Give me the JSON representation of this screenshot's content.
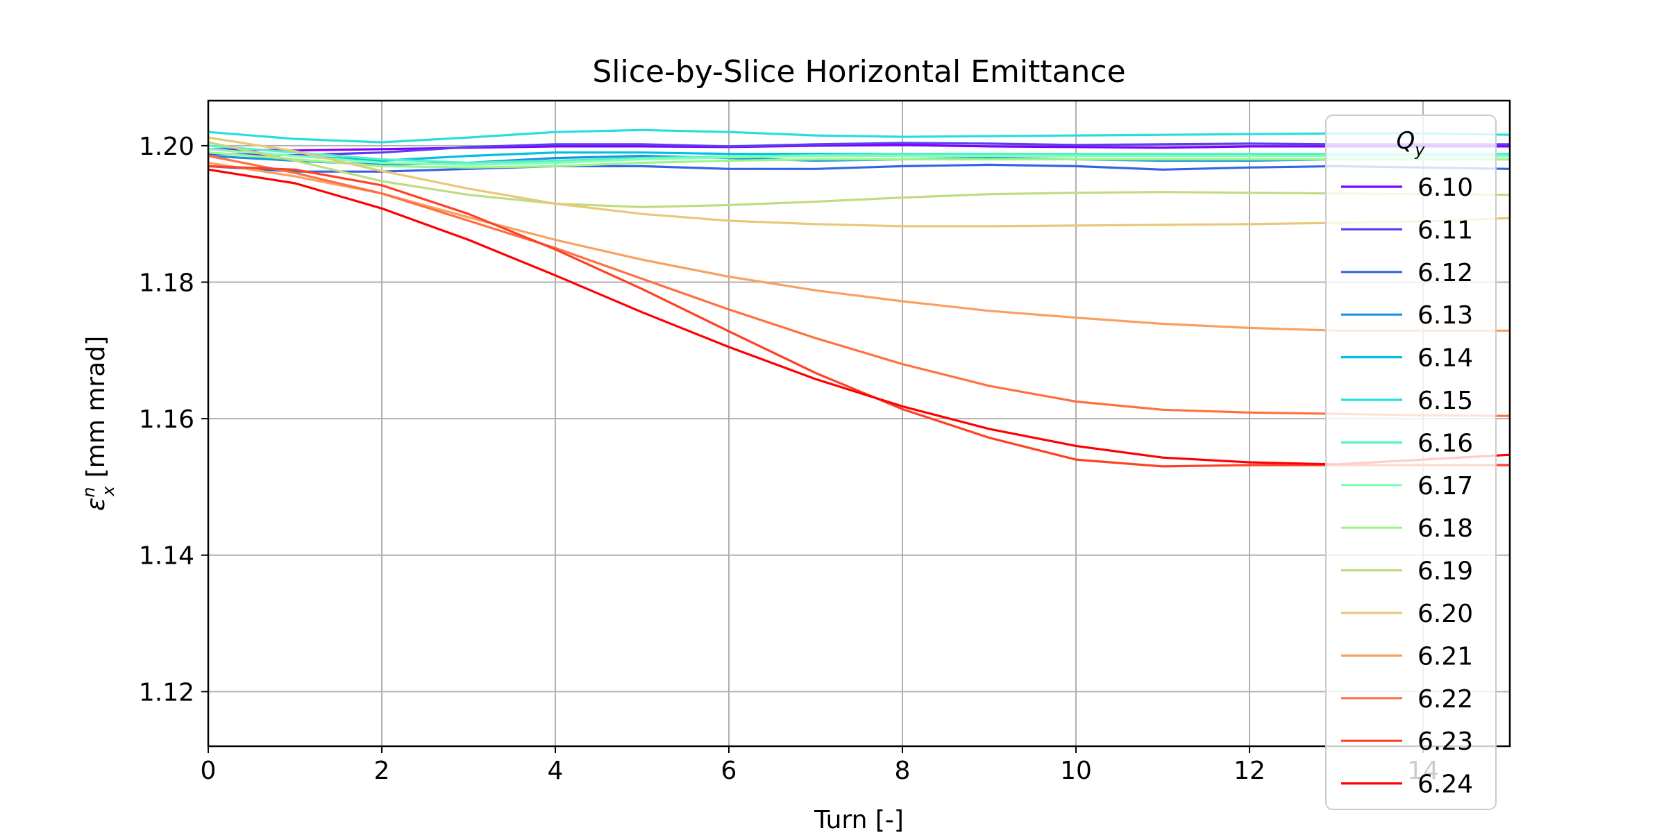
{
  "chart_data": {
    "type": "line",
    "title": "Slice-by-Slice Horizontal Emittance",
    "xlabel": "Turn [-]",
    "ylabel_main": "ε",
    "ylabel_sup": "n",
    "ylabel_sub": "x",
    "ylabel_units": "[mm mrad]",
    "xlim": [
      0,
      15
    ],
    "ylim": [
      1.112,
      1.2066
    ],
    "xticks": [
      0,
      2,
      4,
      6,
      8,
      10,
      12,
      14
    ],
    "yticks": [
      1.12,
      1.14,
      1.16,
      1.18,
      1.2
    ],
    "grid": true,
    "legend": {
      "title_main": "Q",
      "title_sub": "y",
      "placement": "right"
    },
    "x": [
      0,
      1,
      2,
      3,
      4,
      5,
      6,
      7,
      8,
      9,
      10,
      11,
      12,
      13,
      14,
      15
    ],
    "series": [
      {
        "name": "6.10",
        "color": "#8000ff",
        "values": [
          1.1995,
          1.1993,
          1.1995,
          1.1997,
          1.1999,
          1.1999,
          1.1998,
          1.2,
          1.2001,
          1.1999,
          1.1998,
          1.1997,
          1.1999,
          1.1999,
          1.1999,
          1.1999
        ]
      },
      {
        "name": "6.11",
        "color": "#5a3ef2",
        "values": [
          1.1988,
          1.1986,
          1.199,
          1.1998,
          1.2002,
          1.2002,
          1.1999,
          1.2002,
          1.2004,
          1.2003,
          1.2001,
          1.2002,
          1.2003,
          1.2002,
          1.2002,
          1.2002
        ]
      },
      {
        "name": "6.12",
        "color": "#3464e3",
        "values": [
          1.197,
          1.1962,
          1.1962,
          1.1966,
          1.197,
          1.197,
          1.1966,
          1.1966,
          1.197,
          1.1972,
          1.197,
          1.1965,
          1.1968,
          1.197,
          1.1968,
          1.1966
        ]
      },
      {
        "name": "6.13",
        "color": "#1996de",
        "values": [
          1.1985,
          1.1978,
          1.1972,
          1.1975,
          1.1982,
          1.1985,
          1.1982,
          1.1978,
          1.198,
          1.1982,
          1.198,
          1.1978,
          1.1978,
          1.198,
          1.198,
          1.198
        ]
      },
      {
        "name": "6.14",
        "color": "#00c0e0",
        "values": [
          1.1995,
          1.1985,
          1.1978,
          1.1985,
          1.199,
          1.199,
          1.1988,
          1.1988,
          1.1988,
          1.1988,
          1.1988,
          1.1988,
          1.1988,
          1.1988,
          1.1988,
          1.1988
        ]
      },
      {
        "name": "6.15",
        "color": "#2adddd",
        "values": [
          1.202,
          1.201,
          1.2005,
          1.2012,
          1.202,
          1.2023,
          1.202,
          1.2015,
          1.2013,
          1.2014,
          1.2015,
          1.2016,
          1.2017,
          1.2018,
          1.2018,
          1.2016
        ]
      },
      {
        "name": "6.16",
        "color": "#55f0c8",
        "values": [
          1.2,
          1.199,
          1.198,
          1.1975,
          1.1978,
          1.1982,
          1.1984,
          1.1986,
          1.1988,
          1.1988,
          1.1988,
          1.1988,
          1.1988,
          1.1988,
          1.1988,
          1.1988
        ]
      },
      {
        "name": "6.17",
        "color": "#80ffb4",
        "values": [
          1.1995,
          1.1985,
          1.1975,
          1.1972,
          1.1975,
          1.198,
          1.1983,
          1.1985,
          1.1985,
          1.1985,
          1.1985,
          1.1985,
          1.1985,
          1.1985,
          1.1985,
          1.1985
        ]
      },
      {
        "name": "6.18",
        "color": "#9af58a",
        "values": [
          1.199,
          1.198,
          1.197,
          1.1968,
          1.197,
          1.1975,
          1.1978,
          1.198,
          1.198,
          1.198,
          1.198,
          1.198,
          1.198,
          1.198,
          1.198,
          1.198
        ]
      },
      {
        "name": "6.19",
        "color": "#c0dc81",
        "values": [
          1.2005,
          1.1978,
          1.1948,
          1.1928,
          1.1915,
          1.191,
          1.1913,
          1.1918,
          1.1924,
          1.1929,
          1.1931,
          1.1932,
          1.1931,
          1.193,
          1.1929,
          1.1928
        ]
      },
      {
        "name": "6.20",
        "color": "#e8c878",
        "values": [
          1.2012,
          1.1992,
          1.1963,
          1.1937,
          1.1915,
          1.19,
          1.189,
          1.1885,
          1.1882,
          1.1882,
          1.1883,
          1.1884,
          1.1885,
          1.1887,
          1.1889,
          1.1894
        ]
      },
      {
        "name": "6.21",
        "color": "#f8a060",
        "values": [
          1.1975,
          1.1955,
          1.193,
          1.1895,
          1.1862,
          1.1833,
          1.1808,
          1.1788,
          1.1772,
          1.1758,
          1.1748,
          1.1739,
          1.1733,
          1.1729,
          1.1729,
          1.1729
        ]
      },
      {
        "name": "6.22",
        "color": "#ff7040",
        "values": [
          1.1985,
          1.196,
          1.193,
          1.189,
          1.185,
          1.1805,
          1.176,
          1.1718,
          1.168,
          1.1648,
          1.1625,
          1.1613,
          1.1609,
          1.1607,
          1.1605,
          1.1604
        ]
      },
      {
        "name": "6.23",
        "color": "#ff4024",
        "values": [
          1.197,
          1.1965,
          1.1942,
          1.19,
          1.1848,
          1.179,
          1.1728,
          1.1667,
          1.1614,
          1.1572,
          1.154,
          1.153,
          1.1532,
          1.1532,
          1.1532,
          1.1532
        ]
      },
      {
        "name": "6.24",
        "color": "#ff0000",
        "values": [
          1.1965,
          1.1945,
          1.1908,
          1.1862,
          1.181,
          1.1756,
          1.1705,
          1.1658,
          1.1618,
          1.1585,
          1.156,
          1.1543,
          1.1536,
          1.1533,
          1.154,
          1.1547
        ]
      }
    ]
  }
}
